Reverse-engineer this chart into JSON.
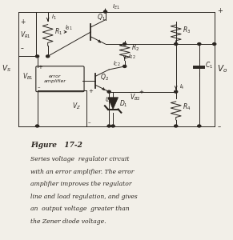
{
  "fig_width": 2.91,
  "fig_height": 3.0,
  "dpi": 100,
  "bg_color": "#f2efe8",
  "line_color": "#2a2520",
  "caption_title": "Figure   17-2",
  "caption_lines": [
    "Series voltage  regulator circuit",
    "with an error amplifier. The error",
    "amplifier improves the regulator",
    "line and load regulation, and gives",
    "an  output voltage  greater than",
    "the Zener diode voltage."
  ]
}
